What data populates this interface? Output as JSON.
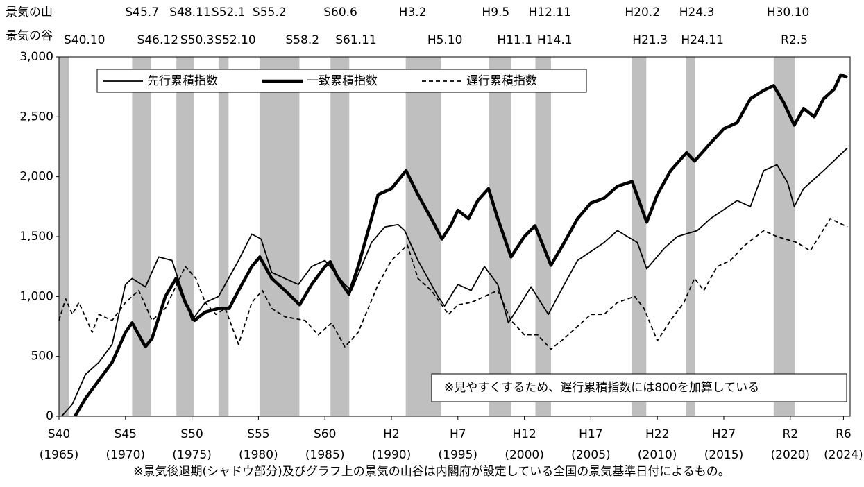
{
  "chart_data": {
    "type": "line",
    "peak_title": "景気の山",
    "trough_title": "景気の谷",
    "peaks": [
      {
        "label": "S45.7",
        "x": 1970.5
      },
      {
        "label": "S48.11",
        "x": 1973.83
      },
      {
        "label": "S52.1",
        "x": 1977.0
      },
      {
        "label": "S55.2",
        "x": 1980.08
      },
      {
        "label": "S60.6",
        "x": 1985.42
      },
      {
        "label": "H3.2",
        "x": 1991.08
      },
      {
        "label": "H9.5",
        "x": 1997.33
      },
      {
        "label": "H12.11",
        "x": 2000.83
      },
      {
        "label": "H20.2",
        "x": 2008.08
      },
      {
        "label": "H24.3",
        "x": 2012.17
      },
      {
        "label": "H30.10",
        "x": 2018.75
      }
    ],
    "troughs": [
      {
        "label": "S40.10",
        "x": 1965.75
      },
      {
        "label": "S46.12",
        "x": 1971.92
      },
      {
        "label": "S50.3",
        "x": 1975.17
      },
      {
        "label": "S52.10",
        "x": 1977.75
      },
      {
        "label": "S58.2",
        "x": 1983.08
      },
      {
        "label": "S61.11",
        "x": 1986.83
      },
      {
        "label": "H5.10",
        "x": 1993.75
      },
      {
        "label": "H11.1",
        "x": 1999.0
      },
      {
        "label": "H14.1",
        "x": 2002.0
      },
      {
        "label": "H21.3",
        "x": 2009.17
      },
      {
        "label": "H24.11",
        "x": 2012.83
      },
      {
        "label": "R2.5",
        "x": 2020.33
      }
    ],
    "xlim": [
      1965,
      2024.5
    ],
    "xticks": [
      {
        "value": 1965,
        "label": "S40"
      },
      {
        "value": 1970,
        "label": "S45"
      },
      {
        "value": 1975,
        "label": "S50"
      },
      {
        "value": 1980,
        "label": "S55"
      },
      {
        "value": 1985,
        "label": "S60"
      },
      {
        "value": 1990,
        "label": "H2"
      },
      {
        "value": 1995,
        "label": "H7"
      },
      {
        "value": 2000,
        "label": "H12"
      },
      {
        "value": 2005,
        "label": "H17"
      },
      {
        "value": 2010,
        "label": "H22"
      },
      {
        "value": 2015,
        "label": "H27"
      },
      {
        "value": 2020,
        "label": "R2"
      },
      {
        "value": 2024,
        "label": "R6"
      }
    ],
    "xtick_years": [
      "(1965)",
      "(1970)",
      "(1975)",
      "(1980)",
      "(1985)",
      "(1990)",
      "(1995)",
      "(2000)",
      "(2005)",
      "(2010)",
      "(2015)",
      "(2020)",
      "(2024)"
    ],
    "ylim": [
      0,
      3000
    ],
    "yticks": [
      0,
      500,
      {
        "value": 1000,
        "label": "1,000"
      },
      {
        "value": 1500,
        "label": "1,500"
      },
      {
        "value": 2000,
        "label": "2,000"
      },
      {
        "value": 2500,
        "label": "2,500"
      },
      {
        "value": 3000,
        "label": "3,000"
      }
    ],
    "shade_color": "#bfbfbf",
    "series": [
      {
        "name": "先行累積指数",
        "color": "#000000",
        "line_width": 1.8,
        "dashed": false,
        "x": [
          1965.2,
          1966,
          1967,
          1968,
          1969,
          1970,
          1970.5,
          1971.5,
          1972.5,
          1973.5,
          1975,
          1976,
          1977,
          1978.5,
          1979.5,
          1980.2,
          1981,
          1982,
          1983,
          1984,
          1985,
          1986.5,
          1987,
          1988.5,
          1989.5,
          1990.5,
          1991,
          1992,
          1993.5,
          1994,
          1995,
          1996,
          1997,
          1998,
          1998.8,
          1999.5,
          2000.5,
          2001.8,
          2003,
          2004,
          2006,
          2007,
          2008.5,
          2009.2,
          2010.5,
          2011.5,
          2013,
          2014,
          2016,
          2017,
          2018,
          2019,
          2019.8,
          2020.3,
          2021,
          2022.5,
          2024.3
        ],
        "values": [
          0,
          100,
          350,
          450,
          600,
          1100,
          1150,
          1080,
          1330,
          1300,
          800,
          950,
          1000,
          1300,
          1520,
          1480,
          1200,
          1150,
          1100,
          1250,
          1300,
          1100,
          1050,
          1450,
          1580,
          1600,
          1550,
          1300,
          1000,
          920,
          1100,
          1050,
          1250,
          1100,
          780,
          900,
          1080,
          850,
          1100,
          1300,
          1450,
          1550,
          1450,
          1230,
          1400,
          1500,
          1550,
          1650,
          1800,
          1750,
          2050,
          2100,
          1950,
          1750,
          1900,
          2050,
          2240
        ]
      },
      {
        "name": "一致累積指数",
        "color": "#000000",
        "line_width": 4.5,
        "dashed": false,
        "x": [
          1966.2,
          1967,
          1968,
          1969,
          1970,
          1970.5,
          1971.5,
          1972,
          1973,
          1973.8,
          1974.5,
          1975.2,
          1976,
          1977,
          1977.8,
          1978.5,
          1979.5,
          1980.1,
          1981,
          1982,
          1983.1,
          1984,
          1985,
          1985.4,
          1986,
          1986.8,
          1987.5,
          1988.5,
          1989,
          1990,
          1991.1,
          1992,
          1993,
          1993.8,
          1994.5,
          1995,
          1995.8,
          1996.5,
          1997.3,
          1998,
          1999,
          2000,
          2000.8,
          2001.5,
          2002,
          2003,
          2004,
          2005,
          2006,
          2007,
          2008.1,
          2009.2,
          2010,
          2011,
          2012.2,
          2012.8,
          2014,
          2015,
          2016,
          2017,
          2018,
          2018.75,
          2019.5,
          2020.3,
          2021,
          2021.8,
          2022.5,
          2023.3,
          2023.8,
          2024.3
        ],
        "values": [
          0,
          150,
          300,
          450,
          700,
          780,
          580,
          650,
          1000,
          1150,
          950,
          800,
          870,
          900,
          900,
          1050,
          1250,
          1330,
          1150,
          1050,
          930,
          1100,
          1250,
          1290,
          1150,
          1020,
          1250,
          1650,
          1850,
          1900,
          2050,
          1850,
          1650,
          1480,
          1600,
          1720,
          1650,
          1800,
          1900,
          1650,
          1330,
          1500,
          1590,
          1400,
          1260,
          1450,
          1650,
          1780,
          1820,
          1920,
          1960,
          1620,
          1850,
          2050,
          2200,
          2130,
          2280,
          2400,
          2450,
          2650,
          2720,
          2760,
          2620,
          2430,
          2570,
          2500,
          2650,
          2730,
          2850,
          2830
        ]
      },
      {
        "name": "遅行累積指数",
        "color": "#000000",
        "line_width": 1.8,
        "dashed": true,
        "x": [
          1965,
          1965.5,
          1966,
          1966.5,
          1967.5,
          1968,
          1969,
          1970,
          1971,
          1972,
          1973,
          1974.5,
          1975.3,
          1976,
          1976.8,
          1977.5,
          1978.5,
          1979.5,
          1980.3,
          1981,
          1982,
          1983.5,
          1984.5,
          1985.5,
          1986.5,
          1987.5,
          1989,
          1990,
          1991.2,
          1992,
          1993,
          1994.3,
          1995,
          1996,
          1997,
          1998,
          1999,
          2000,
          2001,
          2002,
          2003,
          2004,
          2005,
          2006,
          2007,
          2008.3,
          2009,
          2010,
          2011,
          2012,
          2012.8,
          2013.5,
          2014.5,
          2015.5,
          2016.5,
          2018,
          2019,
          2020.5,
          2021.5,
          2023,
          2024.3
        ],
        "values": [
          800,
          980,
          850,
          950,
          700,
          850,
          800,
          950,
          1050,
          800,
          900,
          1250,
          1150,
          950,
          850,
          900,
          600,
          950,
          1050,
          900,
          830,
          800,
          680,
          780,
          580,
          700,
          1100,
          1300,
          1430,
          1150,
          1050,
          850,
          930,
          950,
          1000,
          1050,
          800,
          680,
          680,
          560,
          650,
          750,
          850,
          850,
          950,
          1000,
          900,
          630,
          800,
          950,
          1150,
          1050,
          1250,
          1300,
          1420,
          1550,
          1500,
          1450,
          1380,
          1650,
          1580
        ]
      }
    ],
    "legend": "top-left",
    "annotation": "※見やすくするため、遅行累積指数には800を加算している",
    "footnote": "※景気後退期(シャドウ部分)及びグラフ上の景気の山谷は内閣府が設定している全国の景気基準日付によるもの。"
  }
}
